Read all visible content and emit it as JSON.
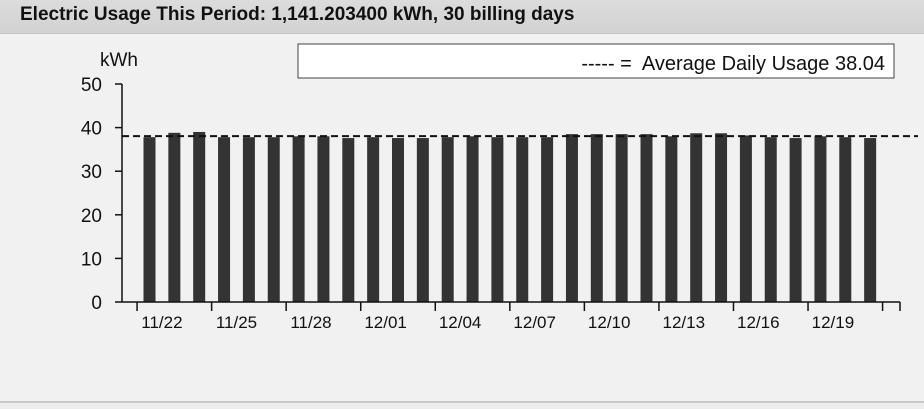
{
  "header": {
    "title": "Electric Usage This Period: 1,141.203400 kWh, 30 billing days"
  },
  "colors": {
    "bar": "#333333",
    "axis": "#111111",
    "background": "#f1f1f1",
    "title_bar": "#d6d6d6"
  },
  "chart_data": {
    "type": "bar",
    "title": "",
    "xlabel": "",
    "ylabel": "kWh",
    "ylim": [
      0,
      50
    ],
    "y_ticks": [
      "0",
      "10",
      "20",
      "30",
      "40",
      "50"
    ],
    "x_tick_labels": [
      "11/22",
      "11/25",
      "11/28",
      "12/01",
      "12/04",
      "12/07",
      "12/10",
      "12/13",
      "12/16",
      "12/19"
    ],
    "x_tick_label_indices": [
      0,
      3,
      6,
      9,
      12,
      15,
      18,
      21,
      24,
      27
    ],
    "values": [
      37.8,
      38.8,
      39.0,
      37.8,
      37.8,
      37.8,
      38.0,
      38.0,
      37.6,
      37.8,
      37.6,
      37.6,
      37.8,
      38.0,
      37.8,
      37.8,
      37.8,
      38.5,
      38.5,
      38.5,
      38.5,
      38.0,
      38.7,
      38.7,
      38.2,
      37.8,
      37.6,
      38.0,
      37.8,
      37.6
    ],
    "average": 38.04,
    "legend": {
      "text": "----- =  Average Daily Usage 38.04",
      "position": "top-right"
    },
    "grid": false
  }
}
